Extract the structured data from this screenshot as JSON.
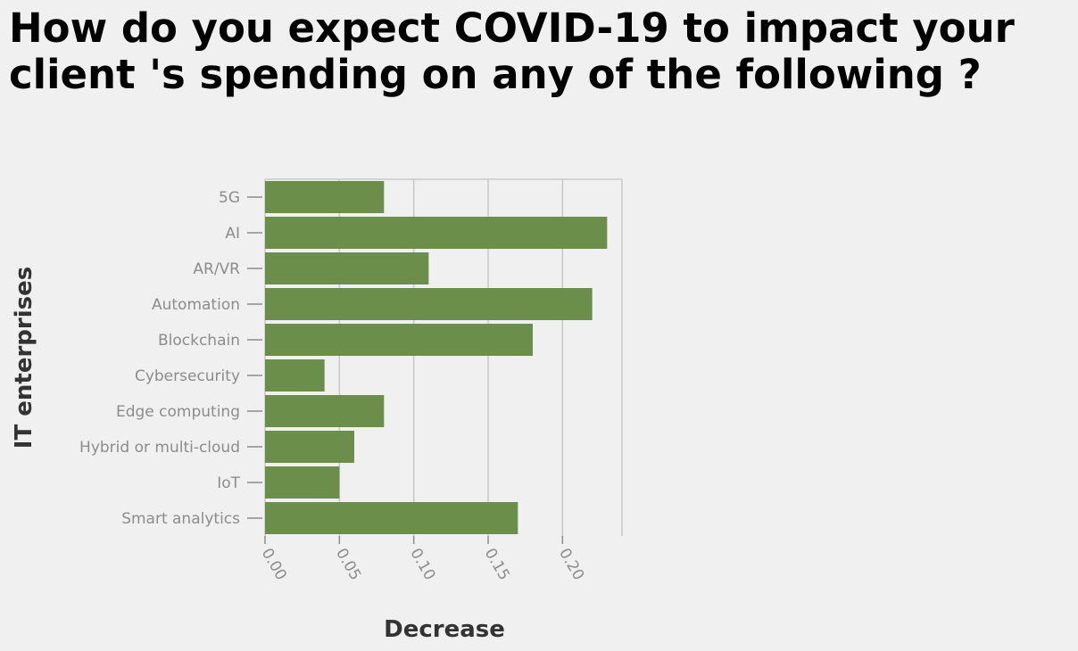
{
  "chart_data": {
    "type": "bar",
    "orientation": "horizontal",
    "title": "How do you expect COVID-19 to impact your client 's spending on any of the following ?",
    "xlabel": "Decrease",
    "ylabel": "IT enterprises",
    "categories": [
      "5G",
      "AI",
      "AR/VR",
      "Automation",
      "Blockchain",
      "Cybersecurity",
      "Edge computing",
      "Hybrid or multi-cloud",
      "IoT",
      "Smart analytics"
    ],
    "values": [
      0.08,
      0.23,
      0.11,
      0.22,
      0.18,
      0.04,
      0.08,
      0.06,
      0.05,
      0.17
    ],
    "xlim": [
      0,
      0.24
    ],
    "xticks": [
      "0.00",
      "0.05",
      "0.10",
      "0.15",
      "0.20"
    ],
    "grid": true,
    "colors": {
      "bar": "#6b8e4a",
      "grid": "#c8c8c8",
      "tick_label": "#8c8c8c",
      "axis_title": "#333333",
      "background": "#f0f0f0"
    }
  }
}
